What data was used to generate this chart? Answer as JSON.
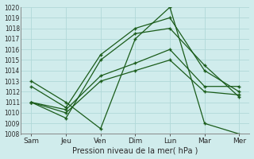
{
  "x_labels": [
    "Sam",
    "Jeu",
    "Ven",
    "Dim",
    "Lun",
    "Mar",
    "Mer"
  ],
  "x_positions": [
    0,
    1,
    2,
    3,
    4,
    5,
    6
  ],
  "ylim": [
    1008,
    1020
  ],
  "yticks": [
    1008,
    1009,
    1010,
    1011,
    1012,
    1013,
    1014,
    1015,
    1016,
    1017,
    1018,
    1019,
    1020
  ],
  "bg_color": "#d0ecec",
  "grid_color": "#b0d8d8",
  "line_color": "#1a5c1a",
  "xlabel": "Pression niveau de la mer( hPa )",
  "series": [
    [
      1013.0,
      1011.0,
      1008.5,
      1017.0,
      1020.0,
      1009.0,
      1008.0
    ],
    [
      1012.5,
      1010.5,
      1015.5,
      1018.0,
      1019.0,
      1014.0,
      1012.0
    ],
    [
      1011.0,
      1009.5,
      1015.0,
      1017.5,
      1018.0,
      1014.5,
      1011.5
    ],
    [
      1011.0,
      1010.3,
      1013.5,
      1014.7,
      1016.0,
      1012.5,
      1012.5
    ],
    [
      1011.0,
      1010.0,
      1013.0,
      1014.0,
      1015.0,
      1012.0,
      1011.7
    ]
  ]
}
